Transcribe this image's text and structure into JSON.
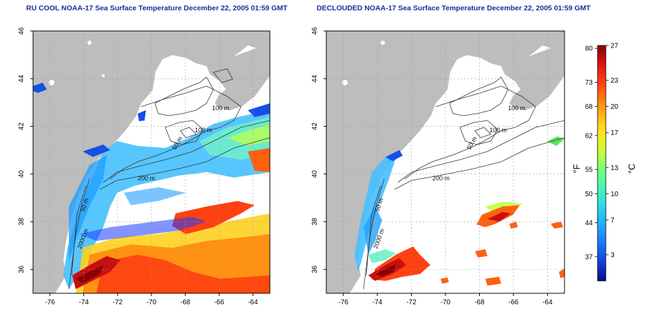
{
  "panels": [
    {
      "title": "RU COOL NOAA-17 Sea Surface Temperature December 22, 2005 01:59 GMT",
      "contours": [
        "100 m",
        "100 m",
        "50 m",
        "200 m",
        "50 m",
        "2000 m"
      ]
    },
    {
      "title": "DECLOUDED NOAA-17 Sea Surface Temperature December 22, 2005 01:59 GMT",
      "contours": [
        "100 m",
        "100 m",
        "50 m",
        "200 m",
        "50 m",
        "2000 m"
      ]
    }
  ],
  "axes": {
    "lon_ticks": [
      "-76",
      "-74",
      "-72",
      "-70",
      "-68",
      "-66",
      "-64"
    ],
    "lat_ticks": [
      "46",
      "44",
      "42",
      "40",
      "38",
      "36"
    ]
  },
  "colorbar": {
    "unit_f": "°F",
    "unit_c": "°C",
    "ticks_f": [
      "80",
      "73",
      "68",
      "62",
      "55",
      "50",
      "44",
      "37"
    ],
    "ticks_c": [
      "27",
      "23",
      "20",
      "17",
      "13",
      "10",
      "7",
      "3"
    ],
    "colors": [
      "#0a0a8a",
      "#1450e6",
      "#20a0ff",
      "#30e0e0",
      "#60ff90",
      "#c8ff30",
      "#ffe020",
      "#ff9a10",
      "#ff4010",
      "#d81010",
      "#8a0000"
    ]
  },
  "colors": {
    "land": "#bdbdbd",
    "title": "#1f2a9c",
    "grid": "#9a9a9a"
  }
}
